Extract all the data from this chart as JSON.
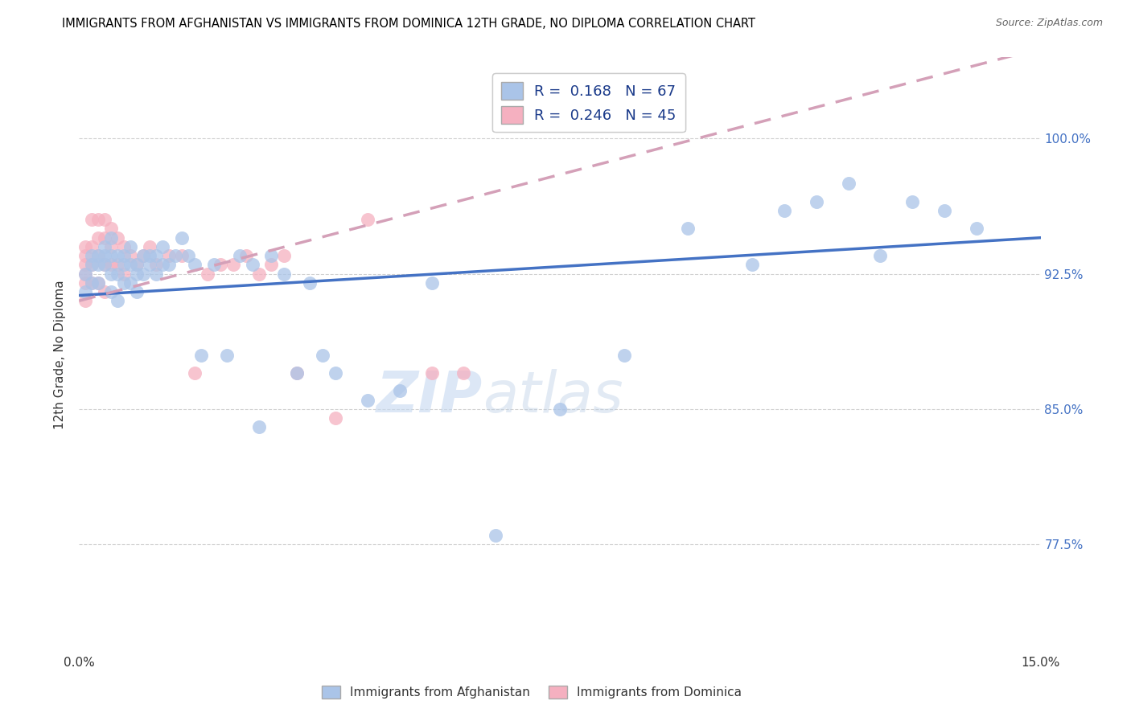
{
  "title": "IMMIGRANTS FROM AFGHANISTAN VS IMMIGRANTS FROM DOMINICA 12TH GRADE, NO DIPLOMA CORRELATION CHART",
  "source": "Source: ZipAtlas.com",
  "ylabel": "12th Grade, No Diploma",
  "yticks_labels": [
    "100.0%",
    "92.5%",
    "85.0%",
    "77.5%"
  ],
  "ytick_vals": [
    1.0,
    0.925,
    0.85,
    0.775
  ],
  "xlim": [
    0.0,
    0.15
  ],
  "ylim": [
    0.715,
    1.045
  ],
  "xtick_vals": [
    0.0,
    0.025,
    0.05,
    0.075,
    0.1,
    0.125,
    0.15
  ],
  "xtick_labels": [
    "0.0%",
    "",
    "",
    "",
    "",
    "",
    "15.0%"
  ],
  "legend_R1": "R =  0.168",
  "legend_N1": "N = 67",
  "legend_R2": "R =  0.246",
  "legend_N2": "N = 45",
  "color_afghanistan": "#aac4e8",
  "color_dominica": "#f5b0c0",
  "line_color_afghanistan": "#4472c4",
  "line_color_dominica": "#e07090",
  "line_color_dominica_dash": "#d4a0b8",
  "watermark_zip": "ZIP",
  "watermark_atlas": "atlas",
  "afg_x": [
    0.001,
    0.001,
    0.002,
    0.002,
    0.002,
    0.003,
    0.003,
    0.003,
    0.004,
    0.004,
    0.004,
    0.005,
    0.005,
    0.005,
    0.005,
    0.006,
    0.006,
    0.006,
    0.007,
    0.007,
    0.007,
    0.008,
    0.008,
    0.008,
    0.009,
    0.009,
    0.009,
    0.01,
    0.01,
    0.011,
    0.011,
    0.012,
    0.012,
    0.013,
    0.013,
    0.014,
    0.015,
    0.016,
    0.017,
    0.018,
    0.019,
    0.021,
    0.023,
    0.025,
    0.027,
    0.028,
    0.03,
    0.032,
    0.034,
    0.036,
    0.038,
    0.04,
    0.045,
    0.05,
    0.055,
    0.065,
    0.075,
    0.085,
    0.095,
    0.105,
    0.11,
    0.115,
    0.12,
    0.125,
    0.13,
    0.135,
    0.14
  ],
  "afg_y": [
    0.925,
    0.915,
    0.935,
    0.93,
    0.92,
    0.935,
    0.93,
    0.92,
    0.94,
    0.935,
    0.93,
    0.945,
    0.935,
    0.925,
    0.915,
    0.935,
    0.925,
    0.91,
    0.935,
    0.93,
    0.92,
    0.94,
    0.93,
    0.92,
    0.93,
    0.925,
    0.915,
    0.935,
    0.925,
    0.935,
    0.93,
    0.935,
    0.925,
    0.94,
    0.93,
    0.93,
    0.935,
    0.945,
    0.935,
    0.93,
    0.88,
    0.93,
    0.88,
    0.935,
    0.93,
    0.84,
    0.935,
    0.925,
    0.87,
    0.92,
    0.88,
    0.87,
    0.855,
    0.86,
    0.92,
    0.78,
    0.85,
    0.88,
    0.95,
    0.93,
    0.96,
    0.965,
    0.975,
    0.935,
    0.965,
    0.96,
    0.95
  ],
  "dom_x": [
    0.001,
    0.001,
    0.001,
    0.001,
    0.001,
    0.001,
    0.002,
    0.002,
    0.002,
    0.002,
    0.003,
    0.003,
    0.003,
    0.003,
    0.004,
    0.004,
    0.004,
    0.004,
    0.005,
    0.005,
    0.005,
    0.006,
    0.006,
    0.007,
    0.007,
    0.008,
    0.009,
    0.01,
    0.011,
    0.012,
    0.014,
    0.016,
    0.018,
    0.02,
    0.022,
    0.024,
    0.026,
    0.028,
    0.03,
    0.032,
    0.034,
    0.04,
    0.045,
    0.055,
    0.06
  ],
  "dom_y": [
    0.94,
    0.935,
    0.93,
    0.925,
    0.92,
    0.91,
    0.955,
    0.94,
    0.93,
    0.92,
    0.955,
    0.945,
    0.935,
    0.92,
    0.955,
    0.945,
    0.93,
    0.915,
    0.95,
    0.94,
    0.93,
    0.945,
    0.93,
    0.94,
    0.925,
    0.935,
    0.93,
    0.935,
    0.94,
    0.93,
    0.935,
    0.935,
    0.87,
    0.925,
    0.93,
    0.93,
    0.935,
    0.925,
    0.93,
    0.935,
    0.87,
    0.845,
    0.955,
    0.87,
    0.87
  ],
  "afg_line_x0": 0.0,
  "afg_line_x1": 0.15,
  "afg_line_y0": 0.913,
  "afg_line_y1": 0.945,
  "dom_line_x0": 0.0,
  "dom_line_x1": 0.15,
  "dom_line_y0": 0.91,
  "dom_line_y1": 1.05
}
